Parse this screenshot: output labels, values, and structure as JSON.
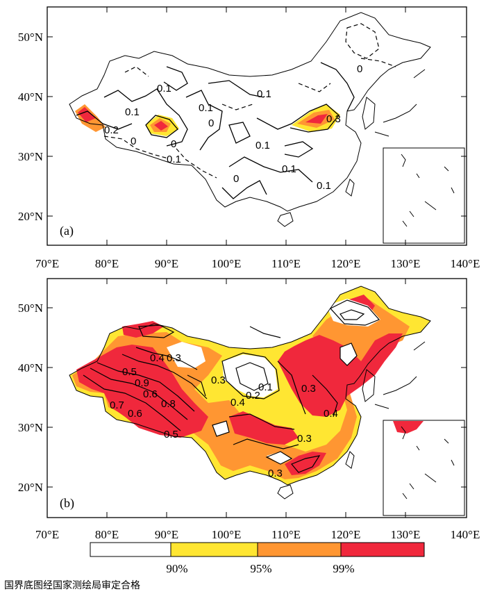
{
  "panels": [
    {
      "label": "(a)"
    },
    {
      "label": "(b)"
    }
  ],
  "axes": {
    "lon_ticks": [
      "70°E",
      "80°E",
      "90°E",
      "100°E",
      "110°E",
      "120°E",
      "130°E",
      "140°E"
    ],
    "lat_ticks": [
      "50°N",
      "40°N",
      "30°N",
      "20°N"
    ]
  },
  "panel_a_contour_labels": [
    "0.1",
    "0.2",
    "0",
    "0.1",
    "0",
    "0.1",
    "0.1",
    "0",
    "0.1",
    "0.1",
    "0.1",
    "0",
    "0.3",
    "0",
    "0.1"
  ],
  "panel_b_contour_labels": [
    "0.4",
    "0.3",
    "0.5",
    "0.6",
    "0.7",
    "0.8",
    "0.9",
    "0.6",
    "0.5",
    "0.3",
    "0.1",
    "0.2",
    "0.4",
    "0.3",
    "0.3",
    "0.4",
    "0.3"
  ],
  "legend": {
    "colors": [
      "#ffffff",
      "#ffe632",
      "#ff9632",
      "#f0283c"
    ],
    "labels": [
      "90%",
      "95%",
      "99%"
    ]
  },
  "footer": "国界底图经国家测绘局审定合格"
}
